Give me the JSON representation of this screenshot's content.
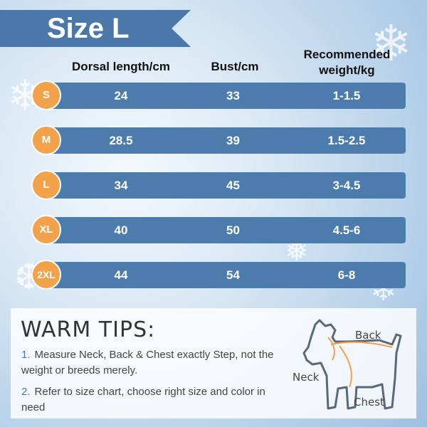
{
  "title": "Size L",
  "headers": {
    "dorsal": "Dorsal length/cm",
    "bust": "Bust/cm",
    "weight_line1": "Recommended",
    "weight_line2": "weight/kg"
  },
  "rows": [
    {
      "size": "S",
      "dorsal": "24",
      "bust": "33",
      "weight": "1-1.5"
    },
    {
      "size": "M",
      "dorsal": "28.5",
      "bust": "39",
      "weight": "1.5-2.5"
    },
    {
      "size": "L",
      "dorsal": "34",
      "bust": "45",
      "weight": "3-4.5"
    },
    {
      "size": "XL",
      "dorsal": "40",
      "bust": "50",
      "weight": "4.5-6"
    },
    {
      "size": "2XL",
      "dorsal": "44",
      "bust": "54",
      "weight": "6-8"
    }
  ],
  "tips": {
    "title": "WARM TIPS:",
    "items": [
      {
        "num": "1.",
        "text": "Measure Neck, Back & Chest exactly Step, not the weight or breeds merely."
      },
      {
        "num": "2.",
        "text": "Refer to size chart, choose right size and color in need"
      }
    ]
  },
  "diagram": {
    "back": "Back",
    "neck": "Neck",
    "chest": "Chest"
  },
  "colors": {
    "banner": "#4a78a8",
    "row": "#4b7cab",
    "badge": "#f2a24a",
    "measure_line": "#f0a050"
  }
}
